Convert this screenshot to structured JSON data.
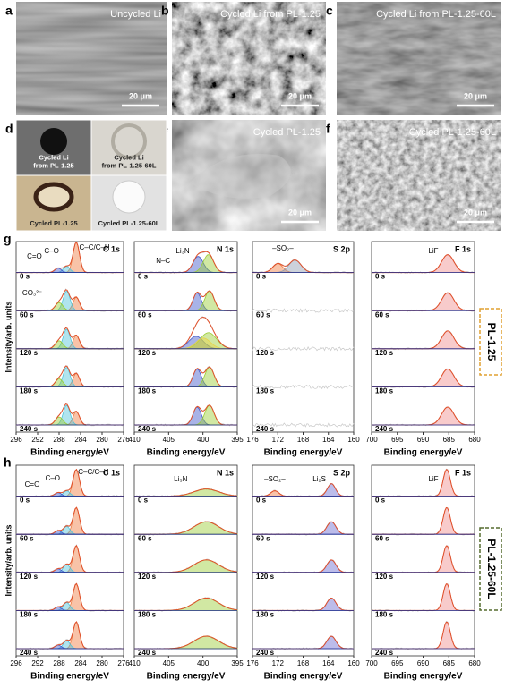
{
  "sem": [
    {
      "letter": "a",
      "caption": "Uncycled Li",
      "scale_bar": "20 μm"
    },
    {
      "letter": "b",
      "caption": "Cycled Li from PL-1.25",
      "scale_bar": "20 μm"
    },
    {
      "letter": "c",
      "caption": "Cycled Li from PL-1.25-60L",
      "scale_bar": "20 μm"
    },
    {
      "letter": "e",
      "caption": "Cycled PL-1.25",
      "scale_bar": "20 μm"
    },
    {
      "letter": "f",
      "caption": "Cycled PL-1.25-60L",
      "scale_bar": "20 μm"
    }
  ],
  "photos": {
    "letter": "d",
    "labels": [
      [
        "Cycled Li",
        "from PL-1.25"
      ],
      [
        "Cycled Li",
        "from PL-1.25-60L"
      ],
      [
        "Cycled PL-1.25"
      ],
      [
        "Cycled PL-1.25-60L"
      ]
    ]
  },
  "xps": [
    {
      "letter": "g",
      "sample": "PL-1.25",
      "y_label": "Intensity/arb. units",
      "panels": [
        {
          "element": "C 1s",
          "x_label": "Binding energy/eV",
          "ticks": [
            296,
            292,
            288,
            284,
            280,
            276
          ],
          "times": [
            "0 s",
            "60 s",
            "120 s",
            "180 s",
            "240 s"
          ],
          "peak_labels": [
            "C=O",
            "C–O",
            "C–C/C–H",
            "CO₃²⁻"
          ]
        },
        {
          "element": "N 1s",
          "x_label": "Binding energy/eV",
          "ticks": [
            410,
            405,
            400,
            395
          ],
          "times": [
            "0 s",
            "60 s",
            "120 s",
            "180 s",
            "240 s"
          ],
          "peak_labels": [
            "N–C",
            "Li₃N"
          ]
        },
        {
          "element": "S 2p",
          "x_label": "Binding energy/eV",
          "ticks": [
            176,
            172,
            168,
            164,
            160
          ],
          "times": [
            "0 s",
            "60 s",
            "120 s",
            "180 s",
            "240 s"
          ],
          "peak_labels": [
            "–SO₂–"
          ]
        },
        {
          "element": "F 1s",
          "x_label": "Binding energy/eV",
          "ticks": [
            700,
            695,
            690,
            685,
            680
          ],
          "times": [
            "0 s",
            "60 s",
            "120 s",
            "180 s",
            "240 s"
          ],
          "peak_labels": [
            "LiF"
          ]
        }
      ]
    },
    {
      "letter": "h",
      "sample": "PL-1.25-60L",
      "y_label": "Intensity/arb. units",
      "panels": [
        {
          "element": "C 1s",
          "x_label": "Binding energy/eV",
          "ticks": [
            296,
            292,
            288,
            284,
            280,
            276
          ],
          "times": [
            "0 s",
            "60 s",
            "120 s",
            "180 s",
            "240 s"
          ],
          "peak_labels": [
            "C=O",
            "C–O",
            "C–C/C–H"
          ]
        },
        {
          "element": "N 1s",
          "x_label": "Binding energy/eV",
          "ticks": [
            410,
            405,
            400,
            395
          ],
          "times": [
            "0 s",
            "60 s",
            "120 s",
            "180 s",
            "240 s"
          ],
          "peak_labels": [
            "Li₃N"
          ]
        },
        {
          "element": "S 2p",
          "x_label": "Binding energy/eV",
          "ticks": [
            176,
            172,
            168,
            164,
            160
          ],
          "times": [
            "0 s",
            "60 s",
            "120 s",
            "180 s",
            "240 s"
          ],
          "peak_labels": [
            "–SO₂–",
            "Li₂S"
          ]
        },
        {
          "element": "F 1s",
          "x_label": "Binding energy/eV",
          "ticks": [
            700,
            695,
            690,
            685,
            680
          ],
          "times": [
            "0 s",
            "60 s",
            "120 s",
            "180 s",
            "240 s"
          ],
          "peak_labels": [
            "LiF"
          ]
        }
      ]
    }
  ]
}
